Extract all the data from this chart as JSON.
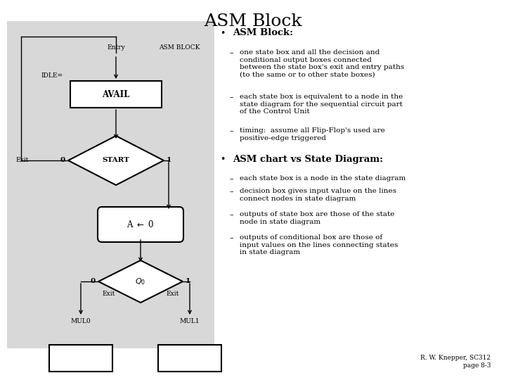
{
  "title": "ASM Block",
  "title_fontsize": 18,
  "background_color": "#ffffff",
  "diagram_bg": "#dcdcdc",
  "bullet1_header": "ASM Block:",
  "bullet1_items": [
    "one state box and all the decision and\nconditional output boxes connected\nbetween the state box's exit and entry paths\n(to the same or to other state boxes)",
    "each state box is equivalent to a node in the\nstate diagram for the sequential circuit part\nof the Control Unit",
    "timing:  assume all Flip-Flop's used are\npositive-edge triggered"
  ],
  "bullet2_header": "ASM chart vs State Diagram:",
  "bullet2_items": [
    "each state box is a node in the state diagram",
    "decision box gives input value on the lines\nconnect nodes in state diagram",
    "outputs of state box are those of the state\nnode in state diagram",
    "outputs of conditional box are those of\ninput values on the lines connecting states\nin state diagram"
  ],
  "footer": "R. W. Knepper, SC312\npage 8-3",
  "text_fontsize": 7.5,
  "header_fontsize": 9.5
}
